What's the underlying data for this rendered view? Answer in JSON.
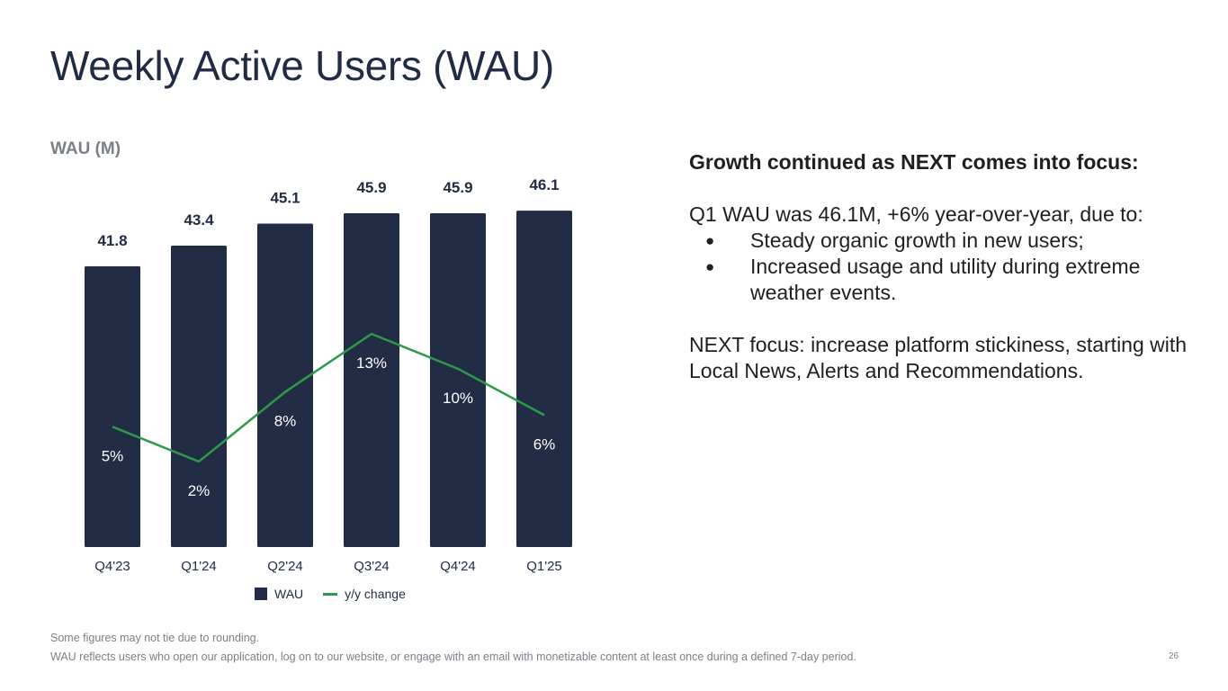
{
  "slide": {
    "title": "Weekly Active Users (WAU)",
    "footnotes": [
      "Some figures may not tie due to rounding.",
      "WAU reflects users who open our application, log on to our website, or engage with an email with monetizable content at least once during a defined 7-day period."
    ],
    "page_number": "26"
  },
  "commentary": {
    "headline": "Growth continued as NEXT comes into focus:",
    "intro": "Q1 WAU was 46.1M, +6% year-over-year, due to:",
    "bullets": [
      "Steady organic growth in new users;",
      "Increased usage and utility during extreme weather events."
    ],
    "closing": "NEXT focus: increase platform stickiness, starting with Local News, Alerts and Recommendations."
  },
  "chart_data": {
    "type": "bar",
    "title": "",
    "ylabel": "WAU (M)",
    "xlabel": "",
    "categories": [
      "Q4'23",
      "Q1'24",
      "Q2'24",
      "Q3'24",
      "Q4'24",
      "Q1'25"
    ],
    "series": [
      {
        "name": "WAU",
        "type": "bar",
        "values": [
          41.8,
          43.4,
          45.1,
          45.9,
          45.9,
          46.1
        ],
        "labels": [
          "41.8",
          "43.4",
          "45.1",
          "45.9",
          "45.9",
          "46.1"
        ],
        "color": "#222c44"
      },
      {
        "name": "y/y change",
        "type": "line",
        "values": [
          5,
          2,
          8,
          13,
          10,
          6
        ],
        "labels": [
          "5%",
          "2%",
          "8%",
          "13%",
          "10%",
          "6%"
        ],
        "color": "#2e9a48"
      }
    ],
    "legend": {
      "position": "bottom-center",
      "items": [
        "WAU",
        "y/y change"
      ]
    }
  }
}
